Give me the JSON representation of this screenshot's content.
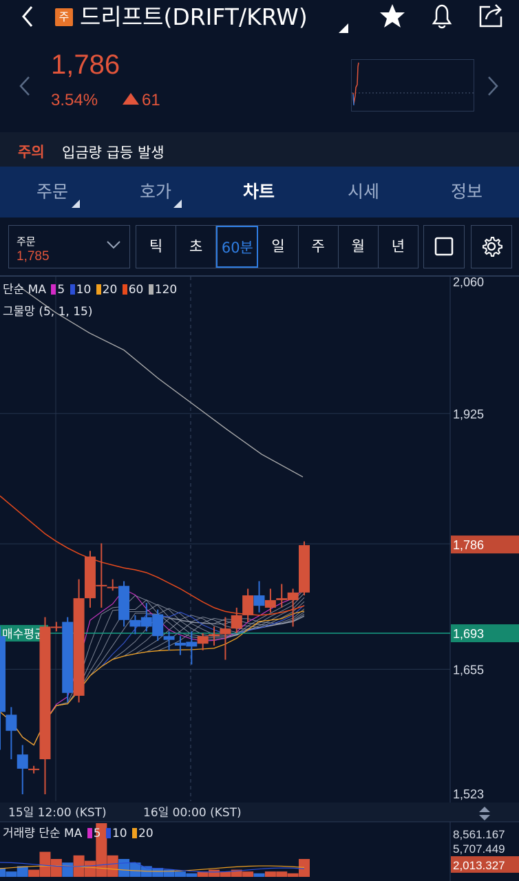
{
  "header": {
    "back_icon": "chevron-left-icon",
    "badge": "주",
    "title": "드리프트(DRIFT/KRW)",
    "icons": [
      "star-icon",
      "bell-icon",
      "share-icon"
    ]
  },
  "price_panel": {
    "price": "1,786",
    "change_pct": "3.54%",
    "change_abs": "61",
    "color_up": "#e2553b"
  },
  "notice": {
    "tag": "주의",
    "text": "입금량 급등 발생"
  },
  "tabs": [
    {
      "label": "주문",
      "has_caret": true,
      "active": false
    },
    {
      "label": "호가",
      "has_caret": true,
      "active": false
    },
    {
      "label": "차트",
      "has_caret": false,
      "active": true
    },
    {
      "label": "시세",
      "has_caret": false,
      "active": false
    },
    {
      "label": "정보",
      "has_caret": false,
      "active": false
    }
  ],
  "order_select": {
    "label": "주문",
    "value": "1,785"
  },
  "periods": [
    {
      "label": "틱",
      "active": false
    },
    {
      "label": "초",
      "active": false
    },
    {
      "label": "60분",
      "active": true
    },
    {
      "label": "일",
      "active": false
    },
    {
      "label": "주",
      "active": false
    },
    {
      "label": "월",
      "active": false
    },
    {
      "label": "년",
      "active": false
    }
  ],
  "legend": {
    "ma_label": "단순 MA",
    "ma_items": [
      {
        "period": "5",
        "color": "#d22bc6"
      },
      {
        "period": "10",
        "color": "#2c4fd6"
      },
      {
        "period": "20",
        "color": "#f0a020"
      },
      {
        "period": "60",
        "color": "#e84a1c"
      },
      {
        "period": "120",
        "color": "#b0b0b0"
      }
    ],
    "ribbon_label": "그물망 (5, 1, 15)"
  },
  "avg_buy_label": "매수평균",
  "volume_legend": {
    "label": "거래량 단순 MA",
    "items": [
      {
        "period": "5",
        "color": "#d22bc6"
      },
      {
        "period": "10",
        "color": "#2c4fd6"
      },
      {
        "period": "20",
        "color": "#f0a020"
      }
    ]
  },
  "volume_axis": [
    "8,561.167",
    "5,707.449"
  ],
  "volume_current": "2,013.327",
  "chart_data": {
    "type": "candlestick",
    "interval": "60분",
    "y_ticks": [
      "2,060",
      "1,925",
      "1,655",
      "1,523"
    ],
    "current_price": "1,786",
    "avg_buy_price": "1,693",
    "ylim": [
      1523,
      2060
    ],
    "x_ticks": [
      "15일 12:00 (KST)",
      "16일 00:00 (KST)"
    ],
    "candles": [
      {
        "o": 1690,
        "c": 1610,
        "h": 1700,
        "l": 1570
      },
      {
        "o": 1607,
        "c": 1590,
        "h": 1615,
        "l": 1560
      },
      {
        "o": 1565,
        "c": 1550,
        "h": 1575,
        "l": 1523
      },
      {
        "o": 1550,
        "c": 1550,
        "h": 1553,
        "l": 1545
      },
      {
        "o": 1560,
        "c": 1700,
        "h": 1710,
        "l": 1523
      },
      {
        "o": 1700,
        "c": 1700,
        "h": 1705,
        "l": 1695
      },
      {
        "o": 1705,
        "c": 1630,
        "h": 1710,
        "l": 1620
      },
      {
        "o": 1627,
        "c": 1730,
        "h": 1750,
        "l": 1620
      },
      {
        "o": 1730,
        "c": 1774,
        "h": 1780,
        "l": 1720
      },
      {
        "o": 1744,
        "c": 1744,
        "h": 1788,
        "l": 1720
      },
      {
        "o": 1742,
        "c": 1742,
        "h": 1750,
        "l": 1738
      },
      {
        "o": 1743,
        "c": 1707,
        "h": 1748,
        "l": 1700
      },
      {
        "o": 1707,
        "c": 1700,
        "h": 1712,
        "l": 1692
      },
      {
        "o": 1710,
        "c": 1700,
        "h": 1725,
        "l": 1695
      },
      {
        "o": 1713,
        "c": 1690,
        "h": 1718,
        "l": 1685
      },
      {
        "o": 1690,
        "c": 1686,
        "h": 1695,
        "l": 1675
      },
      {
        "o": 1683,
        "c": 1680,
        "h": 1690,
        "l": 1670
      },
      {
        "o": 1684,
        "c": 1679,
        "h": 1695,
        "l": 1660
      },
      {
        "o": 1682,
        "c": 1690,
        "h": 1693,
        "l": 1675
      },
      {
        "o": 1690,
        "c": 1692,
        "h": 1700,
        "l": 1680
      },
      {
        "o": 1692,
        "c": 1698,
        "h": 1710,
        "l": 1665
      },
      {
        "o": 1698,
        "c": 1712,
        "h": 1720,
        "l": 1693
      },
      {
        "o": 1712,
        "c": 1733,
        "h": 1740,
        "l": 1705
      },
      {
        "o": 1733,
        "c": 1722,
        "h": 1748,
        "l": 1715
      },
      {
        "o": 1720,
        "c": 1728,
        "h": 1740,
        "l": 1715
      },
      {
        "o": 1728,
        "c": 1730,
        "h": 1745,
        "l": 1720
      },
      {
        "o": 1728,
        "c": 1736,
        "h": 1740,
        "l": 1700
      },
      {
        "o": 1736,
        "c": 1786,
        "h": 1790,
        "l": 1733
      }
    ]
  }
}
